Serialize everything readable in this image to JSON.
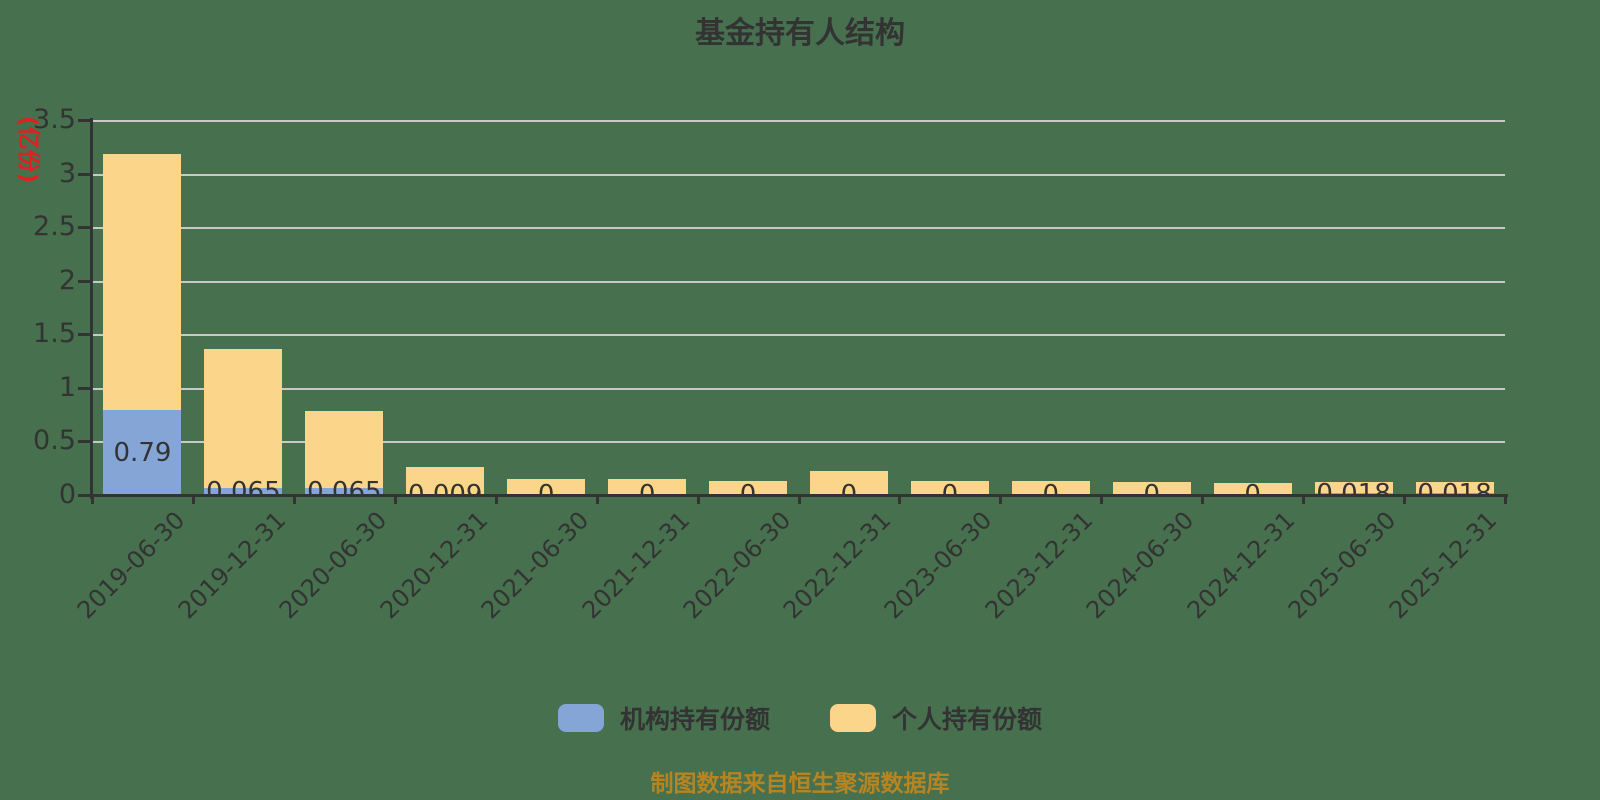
{
  "title": "基金持有人结构",
  "chart_data": {
    "type": "bar",
    "stacked": true,
    "title": "基金持有人结构",
    "ylabel": "(亿份)",
    "ylim": [
      0,
      3.5
    ],
    "yticks": [
      "3.5",
      "3",
      "2.5",
      "2",
      "1.5",
      "1",
      "0.5",
      "0"
    ],
    "grid": true,
    "legend_position": "bottom",
    "categories": [
      "2019-06-30",
      "2019-12-31",
      "2020-06-30",
      "2020-12-31",
      "2021-06-30",
      "2021-12-31",
      "2022-06-30",
      "2022-12-31",
      "2023-06-30",
      "2023-12-31",
      "2024-06-30",
      "2024-12-31",
      "2025-06-30",
      "2025-12-31"
    ],
    "series": [
      {
        "name": "机构持有份额",
        "color": "#85a5d6",
        "values": [
          0.79,
          0.065,
          0.065,
          0.009,
          0,
          0,
          0,
          0,
          0,
          0,
          0,
          0,
          0.018,
          0.018
        ]
      },
      {
        "name": "个人持有份额",
        "color": "#fbd68a",
        "values": [
          2.39,
          1.3,
          0.72,
          0.25,
          0.15,
          0.15,
          0.13,
          0.22,
          0.13,
          0.13,
          0.12,
          0.11,
          0.1,
          0.1
        ]
      }
    ],
    "bar_labels": [
      "0.79",
      "0.065",
      "0.065",
      "0.009",
      "0",
      "0",
      "0",
      "0",
      "0",
      "0",
      "0",
      "0",
      "0.018",
      "0.018"
    ]
  },
  "footer": {
    "source_note": "制图数据来自恒生聚源数据库"
  },
  "colors": {
    "background": "#47704f",
    "institutional": "#85a5d6",
    "personal": "#fbd68a",
    "grid": "#c9c9c9",
    "axis": "#333333",
    "text": "#333333",
    "unit_label": "#e22020",
    "source_note": "#b68521"
  }
}
